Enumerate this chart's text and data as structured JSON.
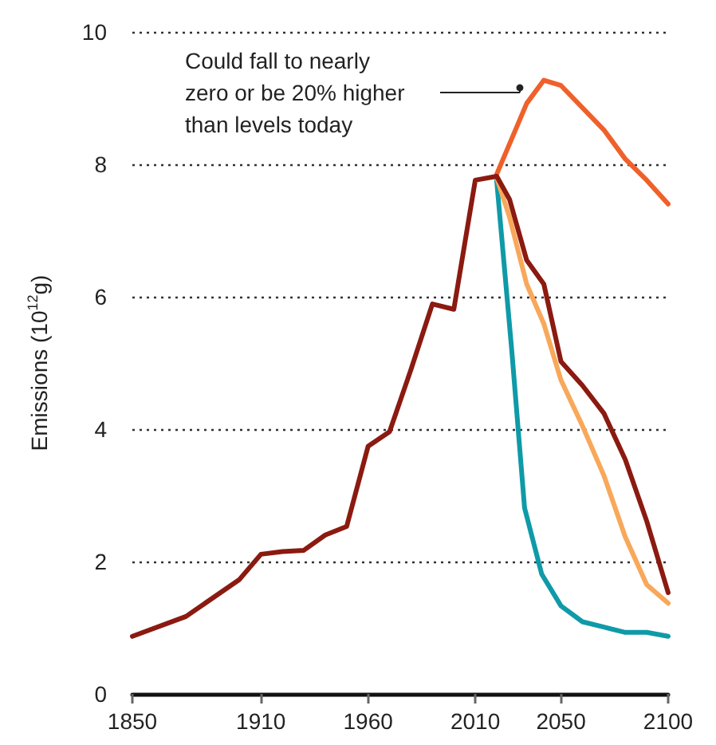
{
  "chart_data": {
    "type": "line",
    "ylabel": "Emissions (10$^{12}$g)",
    "xlim": [
      1850,
      2100
    ],
    "xticks": [
      1850,
      1910,
      1960,
      2010,
      2050,
      2100
    ],
    "ylim": [
      0,
      10
    ],
    "yticks": [
      0,
      2,
      4,
      6,
      8,
      10
    ],
    "grid": "y",
    "marker": "none",
    "line_style": "solid",
    "annotations": [
      "Could fall to nearly\nzero or be 20% higher\nthan levels today"
    ],
    "series": [
      {
        "color": "#f0602a",
        "x": [
          2020,
          2034,
          2042,
          2050,
          2070,
          2080,
          2090,
          2100
        ],
        "values": [
          7.85,
          8.92,
          9.27,
          9.19,
          8.52,
          8.08,
          7.76,
          7.4
        ]
      },
      {
        "color": "#0f9aa8",
        "x": [
          2020,
          2027,
          2033,
          2041,
          2050,
          2060,
          2070,
          2080,
          2090,
          2100
        ],
        "values": [
          7.75,
          5.2,
          2.81,
          1.81,
          1.33,
          1.09,
          1.01,
          0.93,
          0.93,
          0.87
        ]
      },
      {
        "color": "#f8a85a",
        "x": [
          2020,
          2026,
          2034,
          2042,
          2050,
          2060,
          2070,
          2080,
          2090,
          2100
        ],
        "values": [
          7.8,
          7.2,
          6.19,
          5.59,
          4.74,
          4.05,
          3.3,
          2.37,
          1.65,
          1.37
        ]
      },
      {
        "color": "#8b1a10",
        "x": [
          1850,
          1875,
          1900,
          1910,
          1920,
          1930,
          1940,
          1950,
          1960,
          1970,
          1980,
          1990,
          2000,
          2010,
          2020,
          2026,
          2034,
          2042,
          2050,
          2060,
          2070,
          2080,
          2090,
          2100
        ],
        "values": [
          0.87,
          1.17,
          1.73,
          2.11,
          2.15,
          2.17,
          2.4,
          2.53,
          3.74,
          3.96,
          4.9,
          5.89,
          5.81,
          7.76,
          7.82,
          7.47,
          6.55,
          6.19,
          5.02,
          4.66,
          4.24,
          3.54,
          2.61,
          1.53
        ]
      }
    ]
  }
}
